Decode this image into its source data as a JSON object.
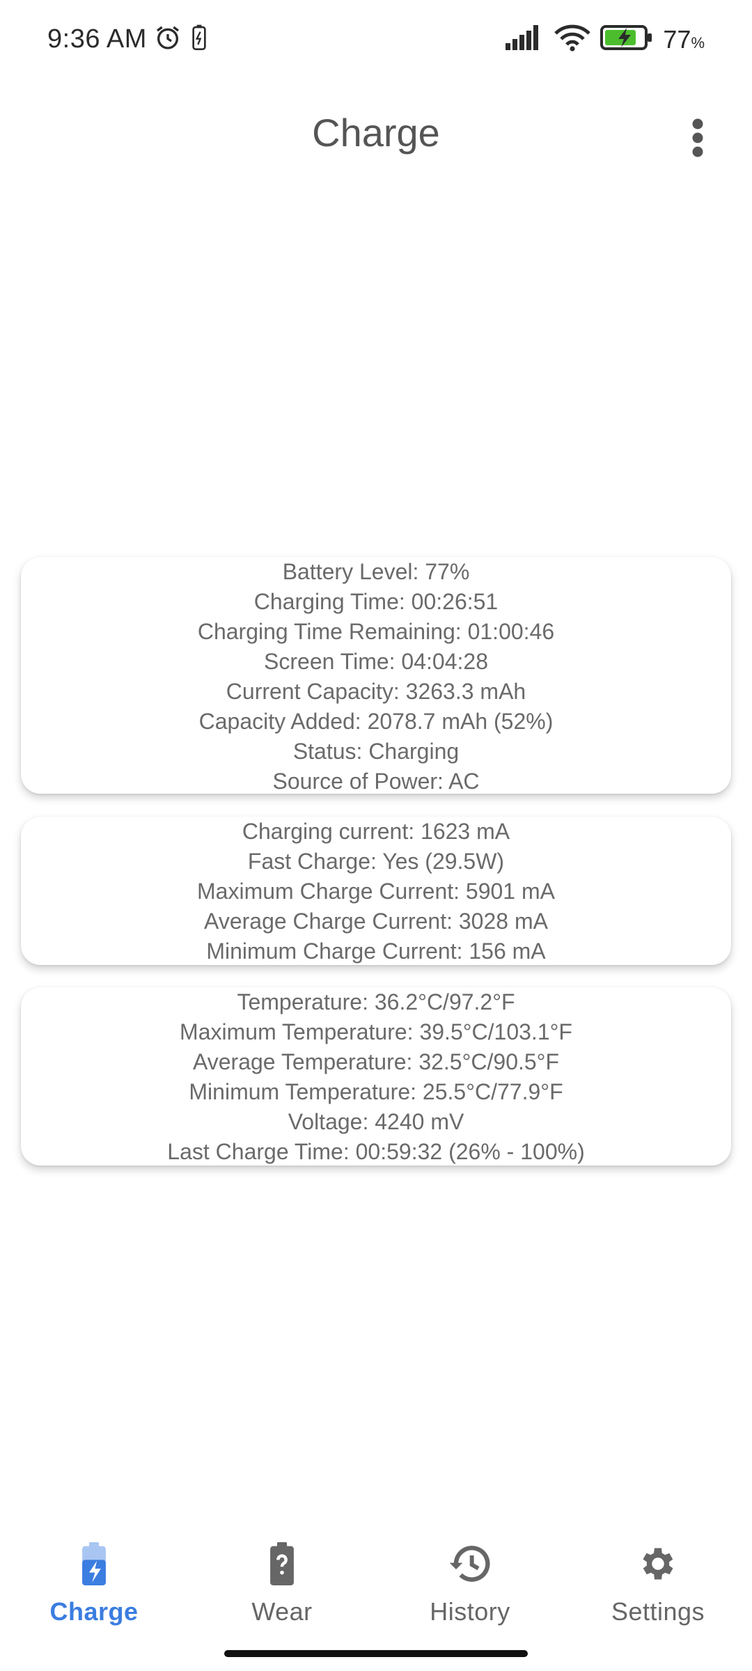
{
  "status_bar": {
    "time": "9:36 AM",
    "icons": [
      "alarm-icon",
      "battery-saver-icon",
      "signal-icon",
      "wifi-icon",
      "battery-charging-icon"
    ],
    "battery_percent": "77",
    "percent_sign": "%"
  },
  "app_bar": {
    "title": "Charge",
    "menu_icon": "more-vert-icon"
  },
  "cards": {
    "battery": [
      "Battery Level: 77%",
      "Charging Time: 00:26:51",
      "Charging Time Remaining: 01:00:46",
      "Screen Time: 04:04:28",
      "Current Capacity: 3263.3 mAh",
      "Capacity Added: 2078.7 mAh (52%)",
      "Status: Charging",
      "Source of Power: AC"
    ],
    "current": [
      "Charging current: 1623 mA",
      "Fast Charge: Yes (29.5W)",
      "Maximum Charge Current: 5901 mA",
      "Average Charge Current: 3028 mA",
      "Minimum Charge Current: 156 mA"
    ],
    "temperature": [
      "Temperature: 36.2°C/97.2°F",
      "Maximum Temperature: 39.5°C/103.1°F",
      "Average Temperature: 32.5°C/90.5°F",
      "Minimum Temperature: 25.5°C/77.9°F",
      "Voltage: 4240 mV",
      "Last Charge Time: 00:59:32 (26% - 100%)"
    ]
  },
  "bottom_nav": {
    "items": [
      {
        "label": "Charge",
        "icon": "battery-charging-icon",
        "active": true
      },
      {
        "label": "Wear",
        "icon": "battery-unknown-icon",
        "active": false
      },
      {
        "label": "History",
        "icon": "history-icon",
        "active": false
      },
      {
        "label": "Settings",
        "icon": "gear-icon",
        "active": false
      }
    ]
  },
  "colors": {
    "accent": "#3b7de0",
    "text": "#6a6a6a",
    "icon": "#666666"
  }
}
